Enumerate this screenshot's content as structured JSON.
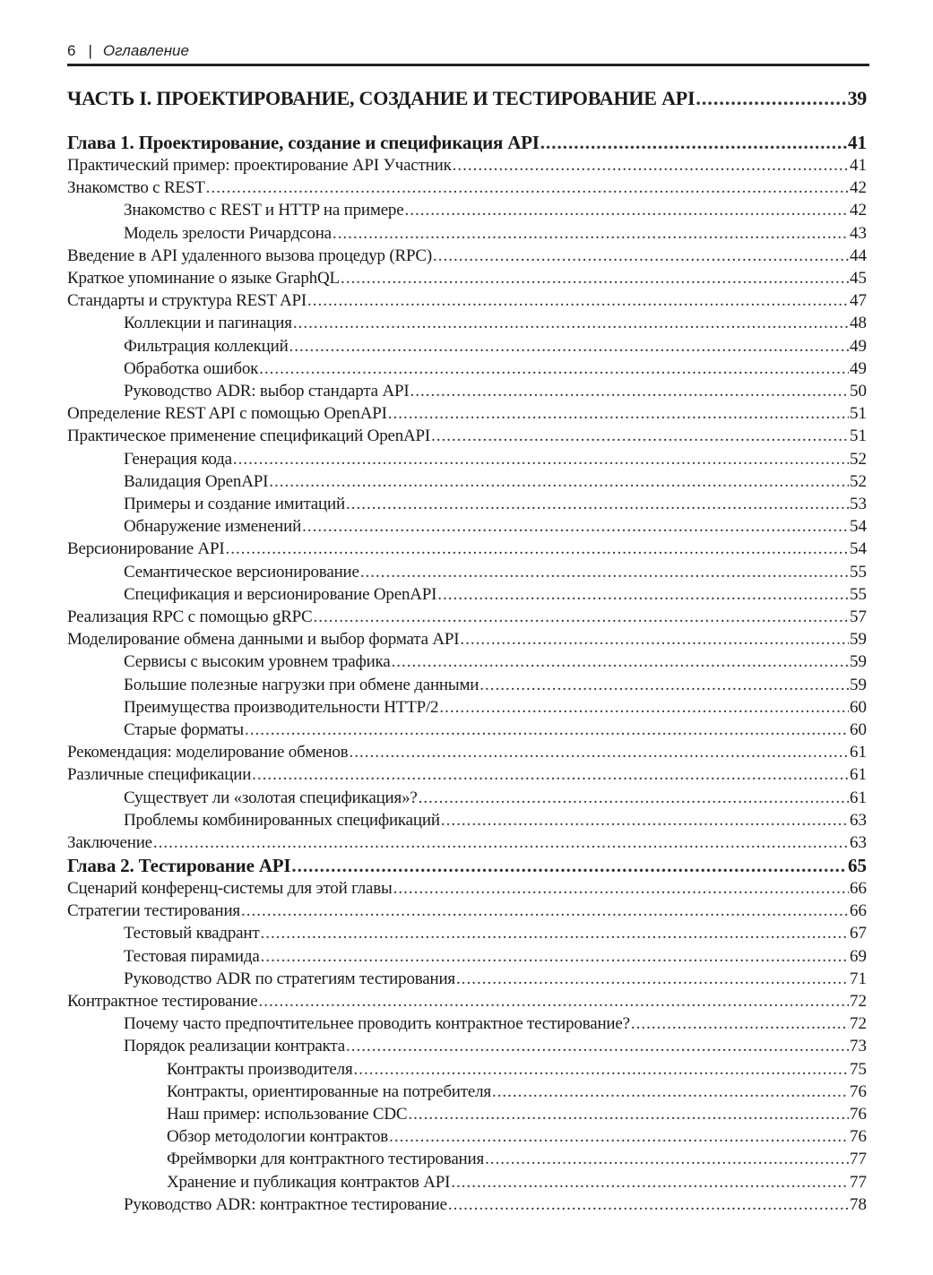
{
  "header": {
    "page_number": "6",
    "separator": "|",
    "title": "Оглавление"
  },
  "entries": [
    {
      "level": "part",
      "title": "ЧАСТЬ I. ПРОЕКТИРОВАНИЕ, СОЗДАНИЕ И ТЕСТИРОВАНИЕ API",
      "page": "39"
    },
    {
      "level": "chapter",
      "title": "Глава 1. Проектирование, создание и спецификация API",
      "page": "41"
    },
    {
      "level": 1,
      "title": "Практический пример: проектирование API Участник",
      "page": "41"
    },
    {
      "level": 1,
      "title": "Знакомство с REST",
      "page": "42"
    },
    {
      "level": 2,
      "title": "Знакомство с REST и HTTP на примере",
      "page": "42"
    },
    {
      "level": 2,
      "title": "Модель зрелости Ричардсона",
      "page": "43"
    },
    {
      "level": 1,
      "title": "Введение в API удаленного вызова процедур (RPC)",
      "page": "44"
    },
    {
      "level": 1,
      "title": "Краткое упоминание о языке GraphQL",
      "page": "45"
    },
    {
      "level": 1,
      "title": "Стандарты и структура REST API",
      "page": "47"
    },
    {
      "level": 2,
      "title": "Коллекции и пагинация",
      "page": "48"
    },
    {
      "level": 2,
      "title": "Фильтрация коллекций",
      "page": "49"
    },
    {
      "level": 2,
      "title": "Обработка ошибок",
      "page": "49"
    },
    {
      "level": 2,
      "title": "Руководство ADR: выбор стандарта API",
      "page": "50"
    },
    {
      "level": 1,
      "title": "Определение REST API с помощью OpenAPI",
      "page": "51"
    },
    {
      "level": 1,
      "title": "Практическое применение спецификаций OpenAPI",
      "page": "51"
    },
    {
      "level": 2,
      "title": "Генерация кода",
      "page": "52"
    },
    {
      "level": 2,
      "title": "Валидация OpenAPI",
      "page": "52"
    },
    {
      "level": 2,
      "title": "Примеры и создание имитаций",
      "page": "53"
    },
    {
      "level": 2,
      "title": "Обнаружение изменений",
      "page": "54"
    },
    {
      "level": 1,
      "title": "Версионирование API",
      "page": "54"
    },
    {
      "level": 2,
      "title": "Семантическое версионирование",
      "page": "55"
    },
    {
      "level": 2,
      "title": "Спецификация и версионирование OpenAPI",
      "page": "55"
    },
    {
      "level": 1,
      "title": "Реализация RPC с помощью gRPC",
      "page": "57"
    },
    {
      "level": 1,
      "title": "Моделирование обмена данными и выбор формата API",
      "page": "59"
    },
    {
      "level": 2,
      "title": "Сервисы с высоким уровнем трафика",
      "page": "59"
    },
    {
      "level": 2,
      "title": "Большие полезные нагрузки при обмене данными",
      "page": "59"
    },
    {
      "level": 2,
      "title": "Преимущества производительности HTTP/2",
      "page": "60"
    },
    {
      "level": 2,
      "title": "Старые форматы",
      "page": "60"
    },
    {
      "level": 1,
      "title": "Рекомендация: моделирование обменов",
      "page": "61"
    },
    {
      "level": 1,
      "title": "Различные спецификации",
      "page": "61"
    },
    {
      "level": 2,
      "title": "Существует ли «золотая спецификация»?",
      "page": "61"
    },
    {
      "level": 2,
      "title": "Проблемы комбинированных спецификаций",
      "page": "63"
    },
    {
      "level": 1,
      "title": "Заключение",
      "page": "63"
    },
    {
      "level": "chapter",
      "title": "Глава 2. Тестирование API",
      "page": "65"
    },
    {
      "level": 1,
      "title": "Сценарий конференц-системы для этой главы",
      "page": "66"
    },
    {
      "level": 1,
      "title": "Стратегии тестирования",
      "page": "66"
    },
    {
      "level": 2,
      "title": "Тестовый квадрант",
      "page": "67"
    },
    {
      "level": 2,
      "title": "Тестовая пирамида",
      "page": "69"
    },
    {
      "level": 2,
      "title": "Руководство ADR по стратегиям тестирования",
      "page": "71"
    },
    {
      "level": 1,
      "title": "Контрактное тестирование",
      "page": "72"
    },
    {
      "level": 2,
      "title": "Почему часто предпочтительнее проводить контрактное тестирование?",
      "page": "72"
    },
    {
      "level": 2,
      "title": "Порядок реализации контракта",
      "page": "73"
    },
    {
      "level": 3,
      "title": "Контракты производителя",
      "page": "75"
    },
    {
      "level": 3,
      "title": "Контракты, ориентированные на потребителя",
      "page": "76"
    },
    {
      "level": 3,
      "title": "Наш пример: использование CDC",
      "page": "76"
    },
    {
      "level": 3,
      "title": "Обзор методологии контрактов",
      "page": "76"
    },
    {
      "level": 3,
      "title": "Фреймворки для контрактного тестирования",
      "page": "77"
    },
    {
      "level": 3,
      "title": "Хранение и публикация контрактов API",
      "page": "77"
    },
    {
      "level": 2,
      "title": "Руководство ADR: контрактное тестирование",
      "page": "78"
    }
  ]
}
